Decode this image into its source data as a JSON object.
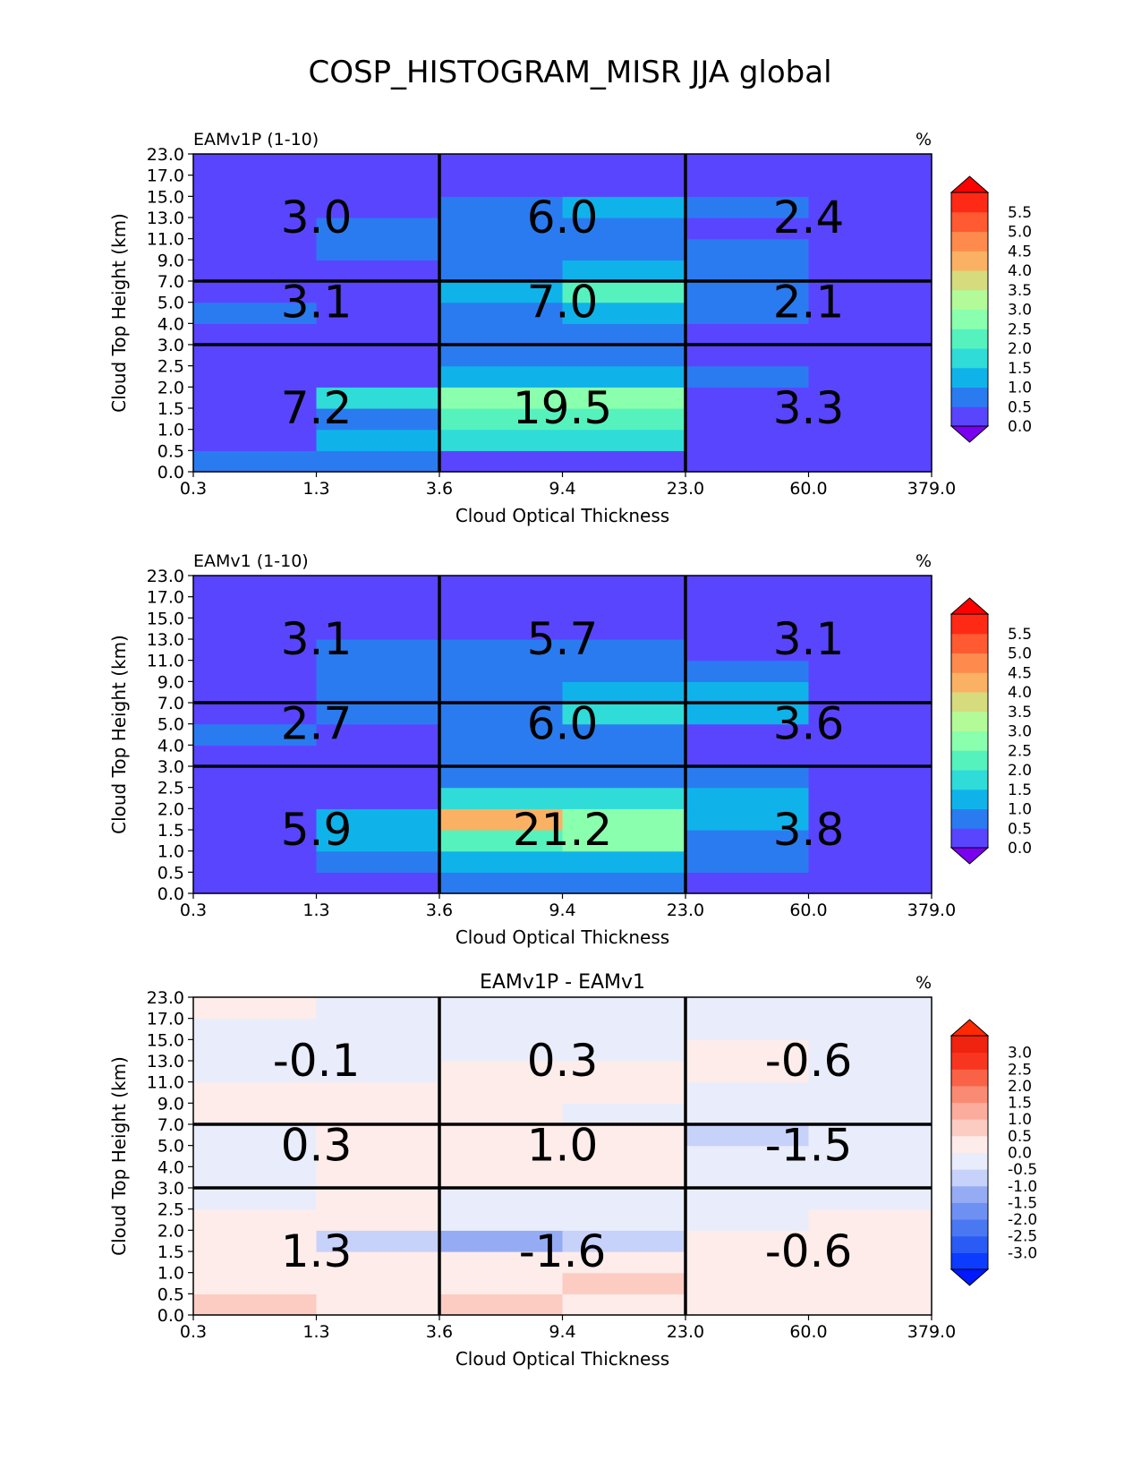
{
  "title": "COSP_HISTOGRAM_MISR JJA global",
  "chart_data": [
    {
      "type": "heatmap",
      "title_left": "EAMv1P (1-10)",
      "title_center": "",
      "units": "%",
      "xlabel": "Cloud Optical Thickness",
      "ylabel": "Cloud Top Height (km)",
      "x_ticks": [
        "0.3",
        "1.3",
        "3.6",
        "9.4",
        "23.0",
        "60.0",
        "379.0"
      ],
      "y_ticks": [
        "0.0",
        "0.5",
        "1.0",
        "1.5",
        "2.0",
        "2.5",
        "3.0",
        "4.0",
        "5.0",
        "7.0",
        "9.0",
        "11.0",
        "13.0",
        "15.0",
        "17.0",
        "23.0"
      ],
      "colorbar": {
        "ticks": [
          "0.0",
          "0.5",
          "1.0",
          "1.5",
          "2.0",
          "2.5",
          "3.0",
          "3.5",
          "4.0",
          "4.5",
          "5.0",
          "5.5"
        ],
        "colors": [
          "#5a45ff",
          "#2b7bf0",
          "#0fb3ea",
          "#2fdcd8",
          "#55f2be",
          "#8affad",
          "#b3fb98",
          "#d6dc7e",
          "#fbb163",
          "#ff8a4d",
          "#ff5a31",
          "#ff2a16"
        ],
        "under": "#7a00f0",
        "over": "#ff0000",
        "vmin": 0,
        "vmax": 6
      },
      "values": [
        [
          0.7,
          0.7,
          0.1,
          0.1,
          0.0,
          0.0
        ],
        [
          0.0,
          1.3,
          1.8,
          1.8,
          0.2,
          0.0
        ],
        [
          0.0,
          0.6,
          2.2,
          2.2,
          0.2,
          0.0
        ],
        [
          0.0,
          1.7,
          2.7,
          2.7,
          0.2,
          0.0
        ],
        [
          0.0,
          0.3,
          1.2,
          1.2,
          0.6,
          0.0
        ],
        [
          0.0,
          0.0,
          0.5,
          0.5,
          0.0,
          0.0
        ],
        [
          0.0,
          0.0,
          0.6,
          0.7,
          0.0,
          0.0
        ],
        [
          0.6,
          0.4,
          0.5,
          1.2,
          0.7,
          0.0
        ],
        [
          0.0,
          0.0,
          1.2,
          2.4,
          0.6,
          0.0
        ],
        [
          0.0,
          0.0,
          0.6,
          1.2,
          0.7,
          0.0
        ],
        [
          0.0,
          0.7,
          0.6,
          0.6,
          0.6,
          0.0
        ],
        [
          0.0,
          0.7,
          0.6,
          0.6,
          0.0,
          0.0
        ],
        [
          0.0,
          0.0,
          0.7,
          1.2,
          0.7,
          0.0
        ],
        [
          0.0,
          0.0,
          0.0,
          0.0,
          0.0,
          0.0
        ],
        [
          0.0,
          0.0,
          0.0,
          0.0,
          0.0,
          0.0
        ]
      ],
      "annotations": [
        {
          "text": "3.0",
          "x": 1.3,
          "y": 13.0
        },
        {
          "text": "6.0",
          "x": 9.4,
          "y": 13.0
        },
        {
          "text": "2.4",
          "x": 60.0,
          "y": 13.0
        },
        {
          "text": "3.1",
          "x": 1.3,
          "y": 5.0
        },
        {
          "text": "7.0",
          "x": 9.4,
          "y": 5.0
        },
        {
          "text": "2.1",
          "x": 60.0,
          "y": 5.0
        },
        {
          "text": "7.2",
          "x": 1.3,
          "y": 1.5
        },
        {
          "text": "19.5",
          "x": 9.4,
          "y": 1.5
        },
        {
          "text": "3.3",
          "x": 60.0,
          "y": 1.5
        }
      ]
    },
    {
      "type": "heatmap",
      "title_left": "EAMv1 (1-10)",
      "title_center": "",
      "units": "%",
      "xlabel": "Cloud Optical Thickness",
      "ylabel": "Cloud Top Height (km)",
      "x_ticks": [
        "0.3",
        "1.3",
        "3.6",
        "9.4",
        "23.0",
        "60.0",
        "379.0"
      ],
      "y_ticks": [
        "0.0",
        "0.5",
        "1.0",
        "1.5",
        "2.0",
        "2.5",
        "3.0",
        "4.0",
        "5.0",
        "7.0",
        "9.0",
        "11.0",
        "13.0",
        "15.0",
        "17.0",
        "23.0"
      ],
      "colorbar": {
        "ticks": [
          "0.0",
          "0.5",
          "1.0",
          "1.5",
          "2.0",
          "2.5",
          "3.0",
          "3.5",
          "4.0",
          "4.5",
          "5.0",
          "5.5"
        ],
        "colors": [
          "#5a45ff",
          "#2b7bf0",
          "#0fb3ea",
          "#2fdcd8",
          "#55f2be",
          "#8affad",
          "#b3fb98",
          "#d6dc7e",
          "#fbb163",
          "#ff8a4d",
          "#ff5a31",
          "#ff2a16"
        ],
        "under": "#7a00f0",
        "over": "#ff0000",
        "vmin": 0,
        "vmax": 6
      },
      "values": [
        [
          0.0,
          0.0,
          0.7,
          0.7,
          0.0,
          0.0
        ],
        [
          0.0,
          0.7,
          1.2,
          1.2,
          0.7,
          0.0
        ],
        [
          0.0,
          1.2,
          2.2,
          2.7,
          0.7,
          0.0
        ],
        [
          0.0,
          1.2,
          4.2,
          2.9,
          1.2,
          0.0
        ],
        [
          0.0,
          0.0,
          1.7,
          1.7,
          1.2,
          0.0
        ],
        [
          0.0,
          0.0,
          0.6,
          0.6,
          0.6,
          0.0
        ],
        [
          0.0,
          0.0,
          0.6,
          0.6,
          0.0,
          0.0
        ],
        [
          0.6,
          0.0,
          0.6,
          0.6,
          0.0,
          0.0
        ],
        [
          0.0,
          0.6,
          0.6,
          1.7,
          1.2,
          0.0
        ],
        [
          0.0,
          0.6,
          0.6,
          1.2,
          1.2,
          0.0
        ],
        [
          0.0,
          0.6,
          0.6,
          0.6,
          0.6,
          0.0
        ],
        [
          0.0,
          0.6,
          0.6,
          0.6,
          0.0,
          0.0
        ],
        [
          0.0,
          0.0,
          0.0,
          0.0,
          0.0,
          0.0
        ],
        [
          0.0,
          0.0,
          0.0,
          0.0,
          0.0,
          0.0
        ],
        [
          0.0,
          0.0,
          0.0,
          0.0,
          0.0,
          0.0
        ]
      ],
      "annotations": [
        {
          "text": "3.1",
          "x": 1.3,
          "y": 13.0
        },
        {
          "text": "5.7",
          "x": 9.4,
          "y": 13.0
        },
        {
          "text": "3.1",
          "x": 60.0,
          "y": 13.0
        },
        {
          "text": "2.7",
          "x": 1.3,
          "y": 5.0
        },
        {
          "text": "6.0",
          "x": 9.4,
          "y": 5.0
        },
        {
          "text": "3.6",
          "x": 60.0,
          "y": 5.0
        },
        {
          "text": "5.9",
          "x": 1.3,
          "y": 1.5
        },
        {
          "text": "21.2",
          "x": 9.4,
          "y": 1.5
        },
        {
          "text": "3.8",
          "x": 60.0,
          "y": 1.5
        }
      ]
    },
    {
      "type": "heatmap",
      "title_left": "",
      "title_center": "EAMv1P - EAMv1",
      "units": "%",
      "xlabel": "Cloud Optical Thickness",
      "ylabel": "Cloud Top Height (km)",
      "x_ticks": [
        "0.3",
        "1.3",
        "3.6",
        "9.4",
        "23.0",
        "60.0",
        "379.0"
      ],
      "y_ticks": [
        "0.0",
        "0.5",
        "1.0",
        "1.5",
        "2.0",
        "2.5",
        "3.0",
        "4.0",
        "5.0",
        "7.0",
        "9.0",
        "11.0",
        "13.0",
        "15.0",
        "17.0",
        "23.0"
      ],
      "colorbar": {
        "ticks": [
          "-3.0",
          "-2.5",
          "-2.0",
          "-1.5",
          "-1.0",
          "-0.5",
          "0.0",
          "0.5",
          "1.0",
          "1.5",
          "2.0",
          "2.5",
          "3.0"
        ],
        "colors": [
          "#0b3cff",
          "#2a5cf5",
          "#4a78f2",
          "#6e90f2",
          "#95acf4",
          "#c7d2fa",
          "#e9edfb",
          "#fdecea",
          "#fcccc2",
          "#fcac9c",
          "#fb8a74",
          "#fa6247",
          "#f8361f",
          "#f02210"
        ],
        "under": "#0019ff",
        "over": "#ff2a00",
        "vmin": -3.5,
        "vmax": 3.5
      },
      "values": [
        [
          0.6,
          0.2,
          0.6,
          0.2,
          0.2,
          0.2
        ],
        [
          0.2,
          0.2,
          0.2,
          0.6,
          0.2,
          0.2
        ],
        [
          0.2,
          0.2,
          0.2,
          0.2,
          0.2,
          0.2
        ],
        [
          0.2,
          -0.6,
          -1.2,
          -0.6,
          0.2,
          0.2
        ],
        [
          0.2,
          0.2,
          -0.1,
          -0.1,
          -0.1,
          0.2
        ],
        [
          -0.1,
          0.2,
          -0.1,
          -0.1,
          -0.1,
          -0.1
        ],
        [
          -0.1,
          0.2,
          0.2,
          0.2,
          -0.1,
          -0.1
        ],
        [
          -0.1,
          0.2,
          0.2,
          0.2,
          -0.1,
          -0.1
        ],
        [
          -0.1,
          0.2,
          0.2,
          0.2,
          -0.6,
          -0.1
        ],
        [
          0.2,
          0.2,
          0.2,
          -0.1,
          -0.1,
          -0.1
        ],
        [
          0.2,
          0.2,
          0.2,
          0.2,
          -0.1,
          -0.1
        ],
        [
          -0.1,
          -0.1,
          0.2,
          0.2,
          0.2,
          -0.1
        ],
        [
          -0.1,
          -0.1,
          -0.1,
          -0.1,
          0.2,
          -0.1
        ],
        [
          -0.1,
          -0.1,
          -0.1,
          -0.1,
          -0.1,
          -0.1
        ],
        [
          0.2,
          -0.1,
          -0.1,
          -0.1,
          -0.1,
          -0.1
        ]
      ],
      "annotations": [
        {
          "text": "-0.1",
          "x": 1.3,
          "y": 13.0
        },
        {
          "text": "0.3",
          "x": 9.4,
          "y": 13.0
        },
        {
          "text": "-0.6",
          "x": 60.0,
          "y": 13.0
        },
        {
          "text": "0.3",
          "x": 1.3,
          "y": 5.0
        },
        {
          "text": "1.0",
          "x": 9.4,
          "y": 5.0
        },
        {
          "text": "-1.5",
          "x": 60.0,
          "y": 5.0
        },
        {
          "text": "1.3",
          "x": 1.3,
          "y": 1.5
        },
        {
          "text": "-1.6",
          "x": 9.4,
          "y": 1.5
        },
        {
          "text": "-0.6",
          "x": 60.0,
          "y": 1.5
        }
      ]
    }
  ]
}
